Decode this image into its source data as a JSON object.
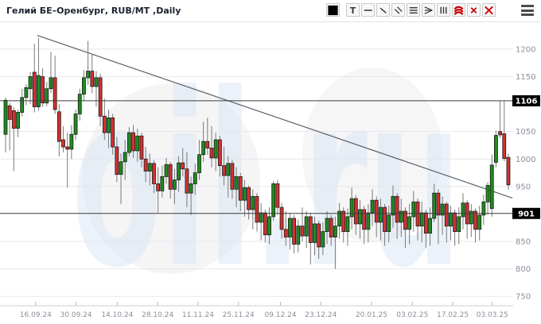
{
  "header": {
    "title": "Гелий БЕ–Оренбург, RUB/MT ,Daily"
  },
  "toolbar": {
    "buttons": [
      {
        "name": "color-swatch",
        "icon": "swatch"
      },
      {
        "name": "text-tool",
        "icon": "text",
        "glyph": "T"
      },
      {
        "name": "horizontal-line-tool",
        "icon": "hline"
      },
      {
        "name": "trendline-tool",
        "icon": "diagonal"
      },
      {
        "name": "parallel-channel-tool",
        "icon": "diagonal2"
      },
      {
        "name": "fib-retracement-tool",
        "icon": "hlines3"
      },
      {
        "name": "fib-fan-tool",
        "icon": "fan"
      },
      {
        "name": "vertical-lines-tool",
        "icon": "vlines3"
      },
      {
        "name": "fib-arcs-tool",
        "icon": "arcs"
      },
      {
        "name": "delete-line-tool",
        "icon": "cross-small"
      },
      {
        "name": "delete-all-tool",
        "icon": "cross-large"
      }
    ],
    "menu": {
      "name": "chart-menu",
      "icon": "hamburger"
    }
  },
  "watermark": {
    "text": "oil.ru",
    "color": "#b9cfe9"
  },
  "chart_data": {
    "type": "candlestick",
    "title": "Гелий БЕ–Оренбург, RUB/MT ,Daily",
    "instrument": "Гелий БЕ–Оренбург",
    "unit": "RUB/MT",
    "timeframe": "Daily",
    "y_axis": {
      "ticks": [
        1200,
        1150,
        1050,
        1000,
        950,
        850,
        800,
        750
      ],
      "range": [
        733,
        1249
      ],
      "grid": true,
      "label_color": "#8a8f98"
    },
    "x_axis": {
      "tick_labels": [
        "16.09.24",
        "30.09.24",
        "14.10.24",
        "28.10.24",
        "11.11.24",
        "25.11.24",
        "09.12.24",
        "23.12.24",
        "20.01.25",
        "03.02.25",
        "17.02.25",
        "03.03.25"
      ],
      "tick_candle_index": [
        7.3,
        17.1,
        27.1,
        36.9,
        46.7,
        56.5,
        66.7,
        76.5,
        88.8,
        98.7,
        108.5,
        118.1
      ],
      "label_color": "#8a8f98"
    },
    "price_lines": [
      {
        "price": 1106,
        "label": "1106"
      },
      {
        "price": 901,
        "label": "901"
      }
    ],
    "trend_line": {
      "from_index": 7.7,
      "from_price": 1225,
      "to_index": 123,
      "to_price": 929
    },
    "colors": {
      "up": "#1e8c1e",
      "down": "#d63030",
      "candle_border": "#1b1b1b",
      "wick": "#7a7a7a",
      "grid": "#e5e7eb",
      "price_line": "#3c3c3c",
      "badge_bg": "#000000",
      "badge_text": "#ffffff",
      "trend": "#5a5f66",
      "axis_line": "#c9ccd1"
    },
    "candles": [
      [
        1045,
        1112,
        1012,
        1107
      ],
      [
        1097,
        1102,
        1016,
        1072
      ],
      [
        1088,
        1094,
        978,
        1056
      ],
      [
        1056,
        1090,
        1040,
        1085
      ],
      [
        1085,
        1128,
        1078,
        1112
      ],
      [
        1112,
        1136,
        1098,
        1130
      ],
      [
        1128,
        1158,
        1100,
        1150
      ],
      [
        1158,
        1210,
        1085,
        1095
      ],
      [
        1095,
        1220,
        1088,
        1152
      ],
      [
        1150,
        1165,
        1095,
        1102
      ],
      [
        1102,
        1140,
        1096,
        1128
      ],
      [
        1128,
        1195,
        1120,
        1148
      ],
      [
        1148,
        1188,
        1082,
        1090
      ],
      [
        1086,
        1100,
        1005,
        1032
      ],
      [
        1035,
        1060,
        1012,
        1022
      ],
      [
        1022,
        1048,
        948,
        1018
      ],
      [
        1018,
        1062,
        1000,
        1045
      ],
      [
        1045,
        1090,
        1035,
        1082
      ],
      [
        1082,
        1128,
        1070,
        1118
      ],
      [
        1118,
        1162,
        1105,
        1148
      ],
      [
        1148,
        1215,
        1135,
        1160
      ],
      [
        1160,
        1190,
        1120,
        1132
      ],
      [
        1132,
        1160,
        1095,
        1148
      ],
      [
        1148,
        1155,
        1060,
        1078
      ],
      [
        1078,
        1110,
        1035,
        1048
      ],
      [
        1048,
        1090,
        1020,
        1075
      ],
      [
        1075,
        1082,
        1008,
        1022
      ],
      [
        1022,
        1040,
        958,
        972
      ],
      [
        972,
        1010,
        918,
        995
      ],
      [
        995,
        1035,
        962,
        1012
      ],
      [
        1012,
        1058,
        1005,
        1048
      ],
      [
        1048,
        1062,
        1002,
        1015
      ],
      [
        1015,
        1055,
        995,
        1042
      ],
      [
        1042,
        1048,
        985,
        1000
      ],
      [
        1000,
        1022,
        958,
        978
      ],
      [
        978,
        1010,
        952,
        992
      ],
      [
        992,
        998,
        938,
        955
      ],
      [
        955,
        985,
        902,
        942
      ],
      [
        942,
        988,
        930,
        968
      ],
      [
        968,
        1002,
        955,
        990
      ],
      [
        990,
        995,
        928,
        945
      ],
      [
        945,
        982,
        918,
        962
      ],
      [
        962,
        1005,
        940,
        993
      ],
      [
        993,
        1020,
        968,
        982
      ],
      [
        982,
        1012,
        912,
        938
      ],
      [
        938,
        968,
        898,
        955
      ],
      [
        955,
        992,
        935,
        975
      ],
      [
        975,
        1035,
        962,
        1008
      ],
      [
        1008,
        1068,
        995,
        1032
      ],
      [
        1032,
        1075,
        1008,
        1020
      ],
      [
        1020,
        1060,
        985,
        1002
      ],
      [
        1002,
        1048,
        978,
        1035
      ],
      [
        1035,
        1042,
        968,
        988
      ],
      [
        988,
        1022,
        952,
        970
      ],
      [
        970,
        1005,
        930,
        992
      ],
      [
        992,
        998,
        928,
        945
      ],
      [
        945,
        985,
        912,
        968
      ],
      [
        968,
        975,
        905,
        925
      ],
      [
        925,
        962,
        895,
        948
      ],
      [
        948,
        952,
        890,
        908
      ],
      [
        908,
        945,
        872,
        932
      ],
      [
        932,
        938,
        868,
        885
      ],
      [
        885,
        920,
        852,
        902
      ],
      [
        902,
        908,
        848,
        862
      ],
      [
        862,
        912,
        845,
        895
      ],
      [
        895,
        960,
        888,
        955
      ],
      [
        955,
        962,
        898,
        912
      ],
      [
        912,
        920,
        855,
        872
      ],
      [
        872,
        905,
        842,
        858
      ],
      [
        858,
        902,
        835,
        892
      ],
      [
        892,
        898,
        828,
        845
      ],
      [
        845,
        890,
        830,
        878
      ],
      [
        878,
        912,
        850,
        860
      ],
      [
        860,
        905,
        838,
        895
      ],
      [
        895,
        902,
        808,
        848
      ],
      [
        848,
        895,
        825,
        882
      ],
      [
        882,
        888,
        818,
        840
      ],
      [
        840,
        885,
        825,
        868
      ],
      [
        868,
        905,
        845,
        892
      ],
      [
        892,
        898,
        842,
        858
      ],
      [
        858,
        895,
        800,
        878
      ],
      [
        878,
        920,
        855,
        905
      ],
      [
        905,
        912,
        848,
        868
      ],
      [
        868,
        910,
        842,
        895
      ],
      [
        895,
        948,
        872,
        928
      ],
      [
        928,
        935,
        862,
        882
      ],
      [
        882,
        925,
        855,
        908
      ],
      [
        908,
        915,
        845,
        872
      ],
      [
        872,
        918,
        848,
        902
      ],
      [
        902,
        945,
        878,
        925
      ],
      [
        925,
        932,
        858,
        885
      ],
      [
        885,
        928,
        852,
        912
      ],
      [
        912,
        918,
        842,
        868
      ],
      [
        868,
        915,
        848,
        898
      ],
      [
        898,
        952,
        875,
        932
      ],
      [
        932,
        938,
        855,
        885
      ],
      [
        885,
        928,
        858,
        905
      ],
      [
        905,
        912,
        838,
        872
      ],
      [
        872,
        918,
        845,
        895
      ],
      [
        895,
        942,
        868,
        922
      ],
      [
        922,
        928,
        852,
        878
      ],
      [
        878,
        922,
        848,
        902
      ],
      [
        902,
        908,
        838,
        865
      ],
      [
        865,
        912,
        842,
        892
      ],
      [
        892,
        955,
        885,
        938
      ],
      [
        938,
        945,
        845,
        898
      ],
      [
        898,
        932,
        862,
        918
      ],
      [
        918,
        922,
        848,
        878
      ],
      [
        878,
        915,
        852,
        902
      ],
      [
        902,
        908,
        842,
        868
      ],
      [
        868,
        912,
        845,
        895
      ],
      [
        895,
        938,
        872,
        920
      ],
      [
        920,
        925,
        855,
        882
      ],
      [
        882,
        918,
        858,
        905
      ],
      [
        905,
        910,
        848,
        872
      ],
      [
        872,
        915,
        852,
        898
      ],
      [
        898,
        935,
        880,
        922
      ],
      [
        922,
        958,
        898,
        952
      ],
      [
        910,
        1008,
        895,
        989
      ],
      [
        994,
        1052,
        985,
        1043
      ],
      [
        1050,
        1106,
        1038,
        1044
      ],
      [
        1046,
        1106,
        996,
        1001
      ],
      [
        1003,
        1010,
        944,
        953
      ]
    ]
  }
}
